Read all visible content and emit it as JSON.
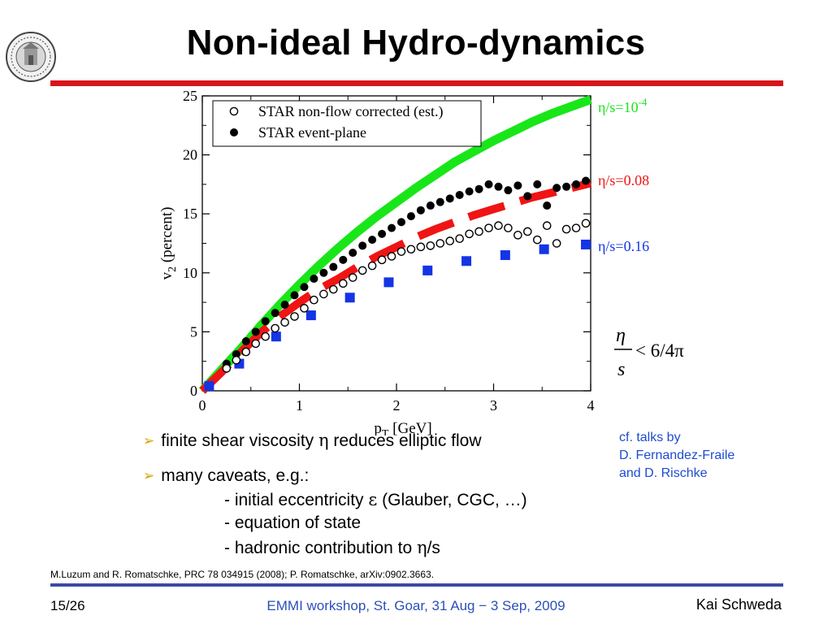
{
  "header": {
    "title": "Non-ideal Hydro-dynamics"
  },
  "bullets": [
    {
      "text_before": "finite shear viscosity ",
      "symbol": "η",
      "text_after": " reduces elliptic flow"
    },
    {
      "text_before": "many caveats, e.g.:",
      "symbol": "",
      "text_after": ""
    }
  ],
  "caveats": [
    {
      "text_before": "- initial eccentricity ",
      "symbol": "ε",
      "text_after": " (Glauber, CGC, …)"
    },
    {
      "text_before": "- equation of state",
      "symbol": "",
      "text_after": ""
    },
    {
      "text_before": "- hadronic contribution to ",
      "symbol": "η",
      "text_after": "/s"
    }
  ],
  "talks": {
    "line1": "cf. talks by",
    "line2": "D. Fernandez-Fraile",
    "line3": "and  D. Rischke"
  },
  "formula": {
    "numerator": "η",
    "denominator": "s",
    "relation": "< 6/4π"
  },
  "reference": "M.Luzum and R. Romatschke, PRC 78 034915 (2008); P. Romatschke, arXiv:0902.3663.",
  "footer": {
    "page": "15/26",
    "event": "EMMI workshop, St. Goar, 31 Aug − 3 Sep, 2009",
    "author": "Kai Schweda"
  },
  "colors": {
    "title_rule": "#d8141a",
    "bottom_rule": "#3e48a6",
    "event_text": "#2b4fb8",
    "talks_text": "#1e4bd2",
    "bullet_arrow": "#d4a000",
    "curve_green": "#19e619",
    "curve_red": "#f01414",
    "curve_blue": "#1434e6"
  },
  "icons": {
    "logo": "university-seal-logo",
    "bullet": "arrow-bullet-icon"
  },
  "chart_data": {
    "type": "scatter",
    "xlabel": "p",
    "xlabel_sub": "T",
    "xlabel_unit": "[GeV]",
    "ylabel": "v",
    "ylabel_sub": "2",
    "ylabel_unit": "(percent)",
    "xlim": [
      0,
      4
    ],
    "ylim": [
      0,
      25
    ],
    "xticks": [
      0,
      1,
      2,
      3,
      4
    ],
    "yticks": [
      0,
      5,
      10,
      15,
      20,
      25
    ],
    "legend": {
      "placement": "top-left",
      "entries": [
        "STAR non-flow corrected (est.)",
        "STAR event-plane"
      ]
    },
    "series": [
      {
        "name": "STAR non-flow corrected (est.)",
        "marker": "open-circle",
        "x": [
          0.25,
          0.35,
          0.45,
          0.55,
          0.65,
          0.75,
          0.85,
          0.95,
          1.05,
          1.15,
          1.25,
          1.35,
          1.45,
          1.55,
          1.65,
          1.75,
          1.85,
          1.95,
          2.05,
          2.15,
          2.25,
          2.35,
          2.45,
          2.55,
          2.65,
          2.75,
          2.85,
          2.95,
          3.05,
          3.15,
          3.25,
          3.35,
          3.45,
          3.55,
          3.65,
          3.75,
          3.85,
          3.95
        ],
        "y": [
          1.9,
          2.6,
          3.3,
          4.0,
          4.6,
          5.3,
          5.8,
          6.3,
          7.0,
          7.7,
          8.2,
          8.6,
          9.1,
          9.6,
          10.2,
          10.6,
          11.1,
          11.4,
          11.8,
          12.0,
          12.2,
          12.3,
          12.5,
          12.7,
          12.9,
          13.3,
          13.5,
          13.8,
          14.0,
          13.8,
          13.2,
          13.5,
          12.8,
          14.0,
          12.5,
          13.7,
          13.8,
          14.2
        ]
      },
      {
        "name": "STAR event-plane",
        "marker": "filled-circle",
        "x": [
          0.25,
          0.35,
          0.45,
          0.55,
          0.65,
          0.75,
          0.85,
          0.95,
          1.05,
          1.15,
          1.25,
          1.35,
          1.45,
          1.55,
          1.65,
          1.75,
          1.85,
          1.95,
          2.05,
          2.15,
          2.25,
          2.35,
          2.45,
          2.55,
          2.65,
          2.75,
          2.85,
          2.95,
          3.05,
          3.15,
          3.25,
          3.35,
          3.45,
          3.55,
          3.65,
          3.75,
          3.85,
          3.95
        ],
        "y": [
          2.3,
          3.1,
          4.2,
          5.0,
          5.9,
          6.6,
          7.3,
          8.1,
          8.8,
          9.5,
          10.0,
          10.5,
          11.1,
          11.7,
          12.3,
          12.8,
          13.3,
          13.8,
          14.3,
          14.8,
          15.3,
          15.7,
          16.0,
          16.3,
          16.6,
          16.9,
          17.1,
          17.5,
          17.3,
          17.0,
          17.4,
          16.5,
          17.5,
          15.7,
          17.2,
          17.3,
          17.5,
          17.8
        ]
      },
      {
        "name": "η/s=10",
        "name_sup": "-4",
        "marker": "line",
        "x": [
          0.0,
          0.1,
          0.2,
          0.4,
          0.6,
          0.8,
          1.0,
          1.2,
          1.4,
          1.6,
          1.8,
          2.0,
          2.2,
          2.4,
          2.6,
          2.8,
          3.0,
          3.2,
          3.4,
          3.6,
          3.8,
          4.0
        ],
        "y": [
          0.0,
          0.9,
          1.8,
          3.6,
          5.5,
          7.3,
          9.0,
          10.6,
          12.1,
          13.5,
          14.8,
          16.0,
          17.2,
          18.3,
          19.4,
          20.3,
          21.2,
          22.0,
          22.8,
          23.5,
          24.1,
          24.7
        ]
      },
      {
        "name": "η/s=0.08",
        "marker": "dashed-line",
        "x": [
          0.0,
          0.2,
          0.4,
          0.6,
          0.8,
          1.0,
          1.2,
          1.4,
          1.6,
          1.8,
          2.0,
          2.2,
          2.4,
          2.6,
          2.8,
          3.0,
          3.2,
          3.4,
          3.6,
          3.8,
          4.0
        ],
        "y": [
          0.0,
          1.6,
          3.3,
          4.9,
          6.3,
          7.5,
          8.6,
          9.5,
          10.5,
          11.4,
          12.2,
          13.0,
          13.7,
          14.3,
          14.9,
          15.4,
          15.9,
          16.4,
          16.8,
          17.2,
          17.6
        ]
      },
      {
        "name": "η/s=0.16",
        "marker": "dotted-line",
        "x": [
          0.07,
          0.38,
          0.76,
          1.12,
          1.52,
          1.92,
          2.32,
          2.72,
          3.12,
          3.52,
          3.95
        ],
        "y": [
          0.4,
          2.3,
          4.6,
          6.4,
          7.9,
          9.2,
          10.2,
          11.0,
          11.5,
          12.0,
          12.4
        ]
      }
    ]
  }
}
